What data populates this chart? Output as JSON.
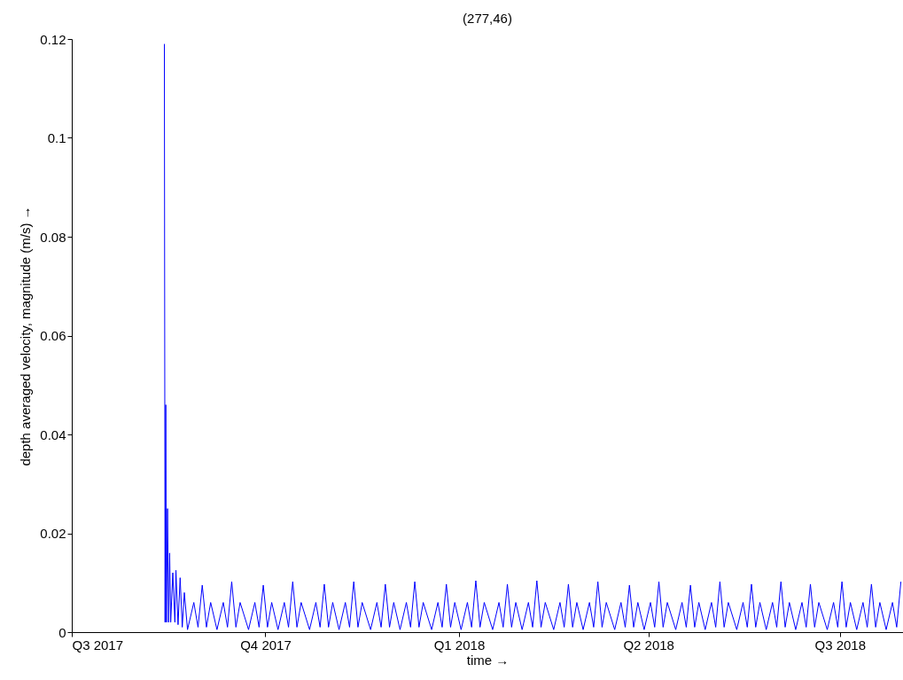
{
  "chart_data": {
    "type": "line",
    "title": "(277,46)",
    "xlabel": "time →",
    "ylabel": "depth averaged velocity, magnitude (m/s) →",
    "xlim": [
      "2017-07-01",
      "2018-07-31"
    ],
    "ylim": [
      0,
      0.12
    ],
    "xticks": [
      {
        "value": "2017-07-01",
        "label": "Q3 2017"
      },
      {
        "value": "2017-10-01",
        "label": "Q4 2017"
      },
      {
        "value": "2018-01-01",
        "label": "Q1 2018"
      },
      {
        "value": "2018-04-01",
        "label": "Q2 2018"
      },
      {
        "value": "2018-07-01",
        "label": "Q3 2018"
      }
    ],
    "yticks": [
      0,
      0.02,
      0.04,
      0.06,
      0.08,
      0.1,
      0.12
    ],
    "grid": false,
    "marker": "none",
    "line_style": "solid",
    "series": [
      {
        "color": "#0000ff",
        "x": [
          "2017-08-14T00:00",
          "2017-08-14T08:00",
          "2017-08-14T16:00",
          "2017-08-15T00:00",
          "2017-08-15T12:00",
          "2017-08-16T00:00",
          "2017-08-16T12:00",
          "2017-08-17T00:00",
          "2017-08-18T00:00",
          "2017-08-19T00:00",
          "2017-08-19T12:00",
          "2017-08-20T12:00",
          "2017-08-21T12:00",
          "2017-08-22T12:00",
          "2017-08-23T12:00",
          "2017-08-25",
          "2017-08-28",
          "2017-08-30",
          "2017-09-01",
          "2017-09-03",
          "2017-09-05",
          "2017-09-08",
          "2017-09-11",
          "2017-09-13",
          "2017-09-15",
          "2017-09-17",
          "2017-09-19",
          "2017-09-23",
          "2017-09-26",
          "2017-09-28",
          "2017-09-30",
          "2017-10-02",
          "2017-10-04",
          "2017-10-07",
          "2017-10-10",
          "2017-10-12",
          "2017-10-14",
          "2017-10-16",
          "2017-10-18",
          "2017-10-22",
          "2017-10-25",
          "2017-10-27",
          "2017-10-29",
          "2017-10-31",
          "2017-11-02",
          "2017-11-05",
          "2017-11-08",
          "2017-11-10",
          "2017-11-12",
          "2017-11-14",
          "2017-11-16",
          "2017-11-20",
          "2017-11-23",
          "2017-11-25",
          "2017-11-27",
          "2017-11-29",
          "2017-12-01",
          "2017-12-04",
          "2017-12-07",
          "2017-12-09",
          "2017-12-11",
          "2017-12-13",
          "2017-12-15",
          "2017-12-19",
          "2017-12-22",
          "2017-12-24",
          "2017-12-26",
          "2017-12-28",
          "2017-12-30",
          "2018-01-02",
          "2018-01-05",
          "2018-01-07",
          "2018-01-09",
          "2018-01-11",
          "2018-01-13",
          "2018-01-17",
          "2018-01-20",
          "2018-01-22",
          "2018-01-24",
          "2018-01-26",
          "2018-01-28",
          "2018-01-31",
          "2018-02-03",
          "2018-02-05",
          "2018-02-07",
          "2018-02-09",
          "2018-02-11",
          "2018-02-15",
          "2018-02-18",
          "2018-02-20",
          "2018-02-22",
          "2018-02-24",
          "2018-02-26",
          "2018-03-01",
          "2018-03-04",
          "2018-03-06",
          "2018-03-08",
          "2018-03-10",
          "2018-03-12",
          "2018-03-16",
          "2018-03-19",
          "2018-03-21",
          "2018-03-23",
          "2018-03-25",
          "2018-03-27",
          "2018-03-30",
          "2018-04-02",
          "2018-04-04",
          "2018-04-06",
          "2018-04-08",
          "2018-04-10",
          "2018-04-14",
          "2018-04-17",
          "2018-04-19",
          "2018-04-21",
          "2018-04-23",
          "2018-04-25",
          "2018-04-28",
          "2018-05-01",
          "2018-05-03",
          "2018-05-05",
          "2018-05-07",
          "2018-05-09",
          "2018-05-13",
          "2018-05-16",
          "2018-05-18",
          "2018-05-20",
          "2018-05-22",
          "2018-05-24",
          "2018-05-27",
          "2018-05-30",
          "2018-06-01",
          "2018-06-03",
          "2018-06-05",
          "2018-06-07",
          "2018-06-10",
          "2018-06-13",
          "2018-06-15",
          "2018-06-17",
          "2018-06-19",
          "2018-06-21",
          "2018-06-25",
          "2018-06-28",
          "2018-06-30",
          "2018-07-02",
          "2018-07-04",
          "2018-07-06",
          "2018-07-09",
          "2018-07-12",
          "2018-07-14",
          "2018-07-16",
          "2018-07-18",
          "2018-07-20",
          "2018-07-23",
          "2018-07-26",
          "2018-07-28",
          "2018-07-30"
        ],
        "values": [
          0.119,
          0.002,
          0.046,
          0.002,
          0.025,
          0.002,
          0.016,
          0.002,
          0.012,
          0.002,
          0.0125,
          0.0015,
          0.011,
          0.001,
          0.008,
          0.0005,
          0.006,
          0.001,
          0.0095,
          0.001,
          0.006,
          0.0005,
          0.006,
          0.001,
          0.0102,
          0.001,
          0.006,
          0.0005,
          0.006,
          0.001,
          0.0095,
          0.001,
          0.006,
          0.0005,
          0.006,
          0.001,
          0.0102,
          0.001,
          0.006,
          0.0005,
          0.006,
          0.001,
          0.0097,
          0.001,
          0.006,
          0.0005,
          0.006,
          0.001,
          0.0102,
          0.001,
          0.006,
          0.0005,
          0.006,
          0.001,
          0.0097,
          0.001,
          0.006,
          0.0005,
          0.006,
          0.001,
          0.0102,
          0.001,
          0.006,
          0.0005,
          0.006,
          0.001,
          0.0097,
          0.001,
          0.006,
          0.0005,
          0.006,
          0.001,
          0.0104,
          0.001,
          0.006,
          0.0005,
          0.006,
          0.001,
          0.0097,
          0.001,
          0.006,
          0.0005,
          0.006,
          0.001,
          0.0104,
          0.001,
          0.006,
          0.0005,
          0.006,
          0.001,
          0.0097,
          0.001,
          0.006,
          0.0005,
          0.006,
          0.001,
          0.0102,
          0.001,
          0.006,
          0.0005,
          0.006,
          0.001,
          0.0095,
          0.001,
          0.006,
          0.0005,
          0.006,
          0.001,
          0.0102,
          0.001,
          0.006,
          0.0005,
          0.006,
          0.001,
          0.0095,
          0.001,
          0.006,
          0.0005,
          0.006,
          0.001,
          0.0102,
          0.001,
          0.006,
          0.0005,
          0.006,
          0.001,
          0.0097,
          0.001,
          0.006,
          0.0005,
          0.006,
          0.001,
          0.0102,
          0.001,
          0.006,
          0.0005,
          0.006,
          0.001,
          0.0097,
          0.001,
          0.006,
          0.0005,
          0.006,
          0.001,
          0.0102,
          0.001,
          0.006,
          0.0005,
          0.006,
          0.001,
          0.0097,
          0.001,
          0.006,
          0.0005,
          0.006,
          0.001,
          0.0102
        ]
      }
    ]
  }
}
